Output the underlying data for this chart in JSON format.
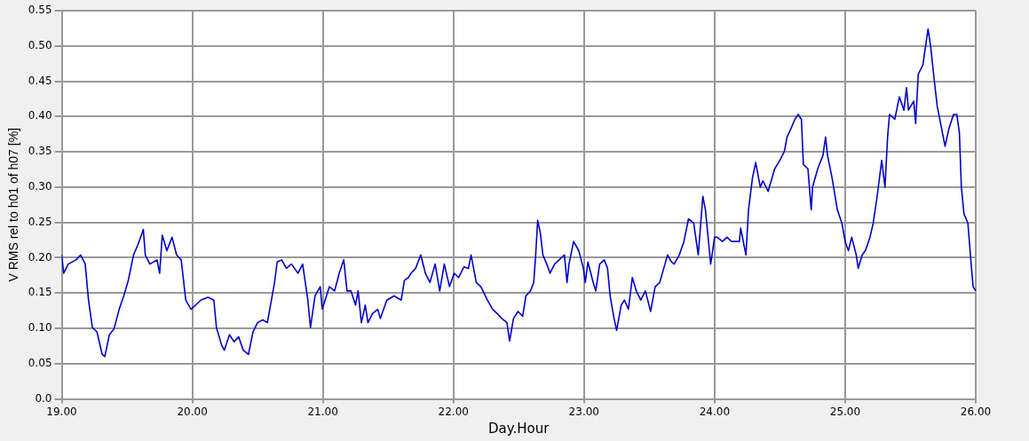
{
  "chart_data": {
    "type": "line",
    "xlabel": "Day.Hour",
    "ylabel": "V RMS rel to h01 of h07 [%]",
    "xlim": [
      19,
      26
    ],
    "ylim": [
      0,
      0.55
    ],
    "xticks": [
      {
        "value": 19,
        "label": "19.00"
      },
      {
        "value": 20,
        "label": "20.00"
      },
      {
        "value": 21,
        "label": "21.00"
      },
      {
        "value": 22,
        "label": "22.00"
      },
      {
        "value": 23,
        "label": "23.00"
      },
      {
        "value": 24,
        "label": "24.00"
      },
      {
        "value": 25,
        "label": "25.00"
      },
      {
        "value": 26,
        "label": "26.00"
      }
    ],
    "yticks": [
      {
        "value": 0,
        "label": "0.0"
      },
      {
        "value": 0.05,
        "label": "0.05"
      },
      {
        "value": 0.1,
        "label": "0.10"
      },
      {
        "value": 0.15,
        "label": "0.15"
      },
      {
        "value": 0.2,
        "label": "0.20"
      },
      {
        "value": 0.25,
        "label": "0.25"
      },
      {
        "value": 0.3,
        "label": "0.30"
      },
      {
        "value": 0.35,
        "label": "0.35"
      },
      {
        "value": 0.4,
        "label": "0.40"
      },
      {
        "value": 0.45,
        "label": "0.45"
      },
      {
        "value": 0.5,
        "label": "0.50"
      },
      {
        "value": 0.55,
        "label": "0.55"
      }
    ],
    "grid": true,
    "marker": "none",
    "series": [
      {
        "color": "#0000cc",
        "x": [
          19.0,
          19.015,
          19.05,
          19.11,
          19.145,
          19.18,
          19.205,
          19.235,
          19.27,
          19.31,
          19.33,
          19.365,
          19.4,
          19.44,
          19.475,
          19.51,
          19.55,
          19.585,
          19.625,
          19.64,
          19.675,
          19.73,
          19.75,
          19.77,
          19.805,
          19.845,
          19.88,
          19.915,
          19.95,
          19.99,
          20.025,
          20.065,
          20.12,
          20.165,
          20.185,
          20.225,
          20.245,
          20.285,
          20.32,
          20.355,
          20.39,
          20.43,
          20.465,
          20.5,
          20.54,
          20.575,
          20.63,
          20.65,
          20.685,
          20.72,
          20.76,
          20.81,
          20.845,
          20.885,
          20.905,
          20.94,
          20.98,
          20.995,
          21.05,
          21.09,
          21.125,
          21.16,
          21.185,
          21.215,
          21.25,
          21.27,
          21.295,
          21.325,
          21.345,
          21.38,
          21.42,
          21.44,
          21.49,
          21.545,
          21.6,
          21.625,
          21.655,
          21.675,
          21.71,
          21.75,
          21.785,
          21.82,
          21.86,
          21.895,
          21.93,
          21.97,
          22.005,
          22.04,
          22.08,
          22.115,
          22.135,
          22.175,
          22.21,
          22.26,
          22.3,
          22.335,
          22.37,
          22.41,
          22.43,
          22.46,
          22.495,
          22.53,
          22.555,
          22.59,
          22.615,
          22.63,
          22.645,
          22.665,
          22.685,
          22.715,
          22.74,
          22.775,
          22.81,
          22.85,
          22.87,
          22.885,
          22.92,
          22.96,
          22.995,
          23.01,
          23.03,
          23.07,
          23.09,
          23.12,
          23.155,
          23.18,
          23.2,
          23.23,
          23.25,
          23.285,
          23.31,
          23.34,
          23.37,
          23.4,
          23.435,
          23.47,
          23.51,
          23.545,
          23.58,
          23.62,
          23.64,
          23.67,
          23.69,
          23.73,
          23.765,
          23.8,
          23.84,
          23.875,
          23.91,
          23.93,
          23.97,
          24.0,
          24.02,
          24.06,
          24.095,
          24.13,
          24.19,
          24.2,
          24.24,
          24.26,
          24.29,
          24.315,
          24.35,
          24.37,
          24.41,
          24.44,
          24.46,
          24.5,
          24.535,
          24.555,
          24.585,
          24.615,
          24.64,
          24.665,
          24.68,
          24.715,
          24.74,
          24.75,
          24.79,
          24.83,
          24.85,
          24.865,
          24.9,
          24.94,
          24.975,
          25.0,
          25.025,
          25.05,
          25.085,
          25.1,
          25.13,
          25.155,
          25.19,
          25.215,
          25.245,
          25.28,
          25.305,
          25.325,
          25.34,
          25.38,
          25.415,
          25.45,
          25.47,
          25.485,
          25.525,
          25.54,
          25.56,
          25.595,
          25.635,
          25.655,
          25.685,
          25.705,
          25.745,
          25.765,
          25.795,
          25.83,
          25.855,
          25.875,
          25.89,
          25.91,
          25.94,
          25.965,
          25.98,
          26.0
        ],
        "values": [
          0.204,
          0.178,
          0.191,
          0.197,
          0.204,
          0.191,
          0.14,
          0.101,
          0.095,
          0.063,
          0.06,
          0.091,
          0.099,
          0.127,
          0.146,
          0.168,
          0.204,
          0.219,
          0.24,
          0.204,
          0.191,
          0.197,
          0.178,
          0.232,
          0.21,
          0.229,
          0.204,
          0.197,
          0.14,
          0.127,
          0.133,
          0.14,
          0.144,
          0.14,
          0.101,
          0.076,
          0.069,
          0.091,
          0.081,
          0.088,
          0.069,
          0.063,
          0.095,
          0.108,
          0.112,
          0.108,
          0.165,
          0.194,
          0.197,
          0.185,
          0.191,
          0.178,
          0.191,
          0.14,
          0.101,
          0.146,
          0.159,
          0.127,
          0.159,
          0.153,
          0.178,
          0.197,
          0.153,
          0.153,
          0.133,
          0.153,
          0.108,
          0.133,
          0.108,
          0.121,
          0.127,
          0.114,
          0.14,
          0.146,
          0.14,
          0.168,
          0.172,
          0.178,
          0.185,
          0.204,
          0.178,
          0.165,
          0.191,
          0.153,
          0.191,
          0.159,
          0.178,
          0.172,
          0.187,
          0.185,
          0.204,
          0.165,
          0.159,
          0.14,
          0.127,
          0.121,
          0.114,
          0.108,
          0.082,
          0.114,
          0.124,
          0.117,
          0.146,
          0.153,
          0.165,
          0.204,
          0.253,
          0.236,
          0.204,
          0.191,
          0.178,
          0.191,
          0.197,
          0.204,
          0.165,
          0.191,
          0.223,
          0.21,
          0.185,
          0.165,
          0.194,
          0.165,
          0.153,
          0.191,
          0.197,
          0.185,
          0.146,
          0.114,
          0.097,
          0.133,
          0.14,
          0.127,
          0.172,
          0.153,
          0.14,
          0.153,
          0.124,
          0.159,
          0.165,
          0.191,
          0.204,
          0.194,
          0.191,
          0.204,
          0.223,
          0.255,
          0.249,
          0.204,
          0.287,
          0.268,
          0.191,
          0.229,
          0.229,
          0.223,
          0.229,
          0.223,
          0.223,
          0.242,
          0.204,
          0.268,
          0.313,
          0.335,
          0.3,
          0.309,
          0.294,
          0.313,
          0.326,
          0.338,
          0.351,
          0.371,
          0.383,
          0.396,
          0.403,
          0.396,
          0.332,
          0.326,
          0.268,
          0.3,
          0.326,
          0.345,
          0.371,
          0.345,
          0.313,
          0.268,
          0.249,
          0.223,
          0.21,
          0.229,
          0.204,
          0.185,
          0.204,
          0.21,
          0.229,
          0.249,
          0.287,
          0.338,
          0.3,
          0.371,
          0.403,
          0.396,
          0.428,
          0.409,
          0.441,
          0.409,
          0.422,
          0.39,
          0.46,
          0.473,
          0.524,
          0.499,
          0.447,
          0.415,
          0.377,
          0.358,
          0.383,
          0.403,
          0.403,
          0.377,
          0.3,
          0.262,
          0.249,
          0.191,
          0.159,
          0.153
        ]
      }
    ]
  }
}
